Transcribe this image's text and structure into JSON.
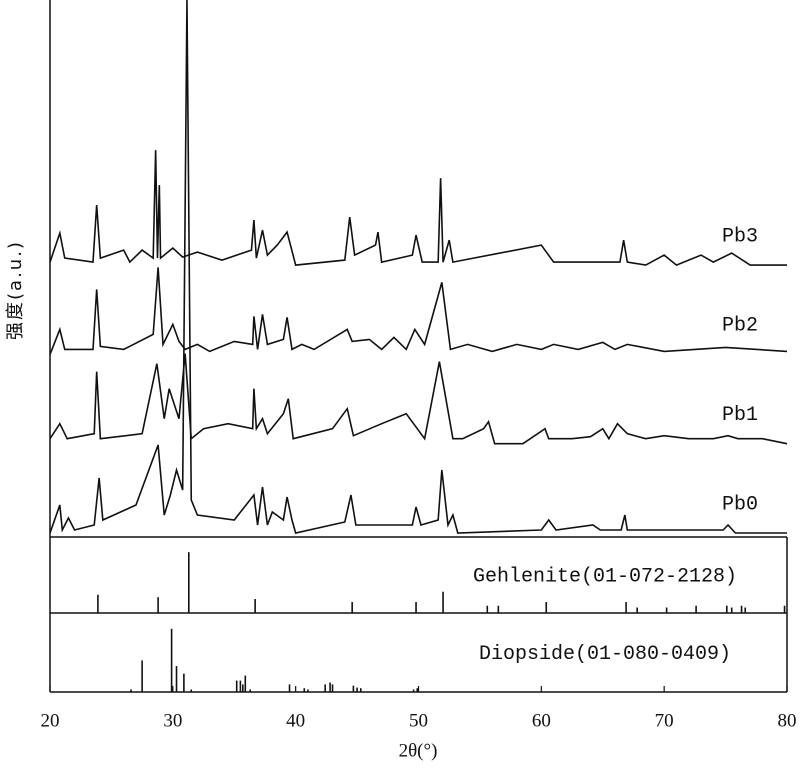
{
  "chart_data": {
    "type": "line",
    "xlabel": "2θ(°)",
    "ylabel": "强度(a.u.)",
    "xlim": [
      20,
      80
    ],
    "xticks": [
      20,
      30,
      40,
      50,
      60,
      70,
      80
    ],
    "series": [
      {
        "name": "Pb0",
        "color": "#111111",
        "x": [
          20,
          20.8,
          21,
          21.5,
          22,
          23.6,
          24,
          24.3,
          27,
          28.8,
          29.3,
          29.8,
          30.3,
          30.8,
          31.15,
          31.5,
          32,
          35,
          36.6,
          36.9,
          37.3,
          37.7,
          38.1,
          39,
          39.3,
          39.7,
          40,
          44,
          44.5,
          44.9,
          49.5,
          49.8,
          50.2,
          51.6,
          51.9,
          52.4,
          52.8,
          53.2,
          60,
          60.6,
          61.2,
          64.2,
          64.8,
          66.5,
          66.8,
          67,
          74.8,
          75.2,
          75.8,
          80
        ],
        "values": [
          0,
          28,
          3,
          15,
          3,
          8,
          55,
          13,
          28,
          88,
          18,
          38,
          63,
          43,
          533,
          33,
          18,
          13,
          38,
          8,
          46,
          8,
          21,
          13,
          36,
          13,
          0,
          11,
          38,
          8,
          8,
          26,
          8,
          13,
          63,
          8,
          18,
          0,
          3,
          13,
          3,
          8,
          3,
          3,
          18,
          3,
          3,
          8,
          0,
          0
        ]
      },
      {
        "name": "Pb1",
        "color": "#111111",
        "x": [
          20,
          20.8,
          21.4,
          23.6,
          23.8,
          24.1,
          27.5,
          28.7,
          29.3,
          29.7,
          30.5,
          31,
          31.5,
          32.5,
          34.5,
          36.5,
          36.6,
          36.8,
          37.3,
          37.7,
          39,
          39.4,
          39.8,
          43,
          44.2,
          44.7,
          47,
          49,
          50.5,
          51.7,
          52.8,
          53.6,
          55.3,
          55.7,
          56.2,
          58.5,
          60.3,
          60.6,
          62.5,
          64,
          65,
          65.5,
          66.2,
          67,
          68.5,
          70,
          72,
          74,
          75.2,
          76,
          78,
          80
        ],
        "values": [
          5,
          20,
          5,
          10,
          72,
          5,
          10,
          80,
          25,
          55,
          25,
          90,
          5,
          15,
          20,
          15,
          55,
          15,
          25,
          10,
          30,
          45,
          5,
          15,
          35,
          8,
          20,
          30,
          5,
          82,
          5,
          5,
          15,
          22,
          0,
          0,
          15,
          5,
          5,
          7,
          15,
          5,
          20,
          10,
          5,
          8,
          5,
          5,
          8,
          5,
          5,
          0
        ]
      },
      {
        "name": "Pb2",
        "color": "#111111",
        "x": [
          20,
          20.8,
          21.2,
          23.5,
          23.8,
          24.1,
          26,
          28.4,
          28.8,
          29.2,
          30,
          30.5,
          31,
          32,
          33,
          35,
          36.5,
          36.6,
          36.9,
          37.3,
          37.7,
          39,
          39.3,
          39.7,
          40.5,
          41.5,
          44.2,
          44.6,
          46,
          47,
          48,
          49,
          49.7,
          50.5,
          51.9,
          52.6,
          54,
          56,
          58,
          60,
          61,
          63,
          65,
          66,
          67,
          70,
          75,
          80
        ],
        "values": [
          0,
          25,
          5,
          5,
          65,
          8,
          5,
          20,
          87,
          10,
          30,
          13,
          5,
          10,
          3,
          13,
          10,
          38,
          5,
          40,
          10,
          15,
          37,
          5,
          10,
          5,
          25,
          13,
          15,
          5,
          17,
          5,
          25,
          10,
          72,
          5,
          10,
          3,
          10,
          5,
          10,
          5,
          12,
          5,
          10,
          3,
          7,
          3
        ]
      },
      {
        "name": "Pb3",
        "color": "#111111",
        "x": [
          20,
          20.8,
          21.2,
          23.5,
          23.8,
          24.1,
          26,
          26.5,
          27.5,
          28.4,
          28.6,
          28.75,
          28.9,
          29,
          30,
          30.8,
          32,
          34,
          36.4,
          36.6,
          36.8,
          37.3,
          37.7,
          38.5,
          39.3,
          40,
          44,
          44.4,
          44.8,
          46.5,
          46.7,
          47,
          49.5,
          49.8,
          50.3,
          51.6,
          51.8,
          52,
          52.5,
          52.8,
          60,
          61,
          66.4,
          66.7,
          67,
          68.5,
          70,
          71,
          73,
          74,
          75.5,
          77,
          80
        ],
        "values": [
          3,
          32,
          7,
          3,
          60,
          7,
          15,
          3,
          15,
          7,
          115,
          7,
          80,
          7,
          17,
          8,
          13,
          5,
          15,
          45,
          7,
          35,
          10,
          20,
          33,
          0,
          5,
          48,
          10,
          20,
          33,
          3,
          10,
          30,
          3,
          3,
          87,
          3,
          25,
          3,
          20,
          3,
          3,
          25,
          3,
          0,
          10,
          0,
          10,
          3,
          12,
          0,
          0
        ]
      }
    ],
    "references": [
      {
        "name": "Gehlenite(01-072-2128)",
        "color": "#111111",
        "x": [
          23.9,
          28.8,
          31.3,
          36.7,
          44.6,
          49.8,
          52,
          55.6,
          56.5,
          60.4,
          66.9,
          67.8,
          70.2,
          72.6,
          75.1,
          75.5,
          76.3,
          76.6,
          79.8
        ],
        "values": [
          30,
          26,
          100,
          23,
          18,
          18,
          35,
          12,
          12,
          18,
          18,
          9,
          9,
          12,
          12,
          9,
          12,
          9,
          12
        ]
      },
      {
        "name": "Diopside(01-080-0409)",
        "color": "#111111",
        "x": [
          26.6,
          27.5,
          29.9,
          30.3,
          30.9,
          31.5,
          35.2,
          35.5,
          35.7,
          35.9,
          36.3,
          39.5,
          40.7,
          41,
          42.4,
          42.8,
          43,
          44.7,
          45,
          45.3,
          49.6,
          49.9
        ],
        "values": [
          4,
          50,
          100,
          41,
          29,
          4,
          18,
          18,
          12,
          26,
          4,
          12,
          6,
          4,
          12,
          15,
          12,
          10,
          7,
          6,
          4,
          6
        ]
      }
    ]
  }
}
